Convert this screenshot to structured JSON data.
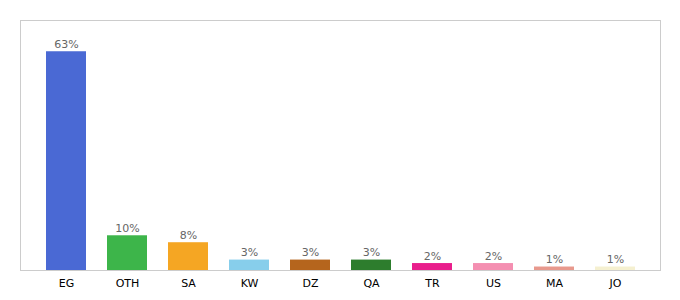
{
  "chart_data": {
    "type": "bar",
    "categories": [
      "EG",
      "OTH",
      "SA",
      "KW",
      "DZ",
      "QA",
      "TR",
      "US",
      "MA",
      "JO"
    ],
    "values": [
      63,
      10,
      8,
      3,
      3,
      3,
      2,
      2,
      1,
      1
    ],
    "value_labels": [
      "63%",
      "10%",
      "8%",
      "3%",
      "3%",
      "3%",
      "2%",
      "2%",
      "1%",
      "1%"
    ],
    "colors": [
      "#4a69d4",
      "#3db54a",
      "#f5a623",
      "#87ceeb",
      "#b5651d",
      "#2d7d2d",
      "#e91e8c",
      "#f48fb1",
      "#e8998d",
      "#f5f0d0"
    ],
    "ylim": [
      0,
      72
    ],
    "data_labels": true,
    "tick_labels": "x",
    "grid": false
  }
}
